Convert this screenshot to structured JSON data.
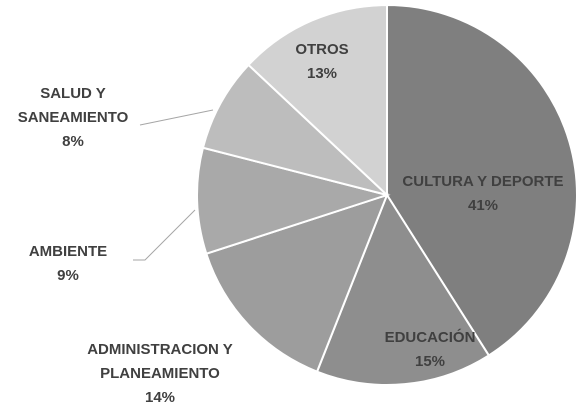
{
  "chart_data": {
    "type": "pie",
    "categories": [
      "CULTURA Y DEPORTE",
      "EDUCACIÓN",
      "ADMINISTRACION Y PLANEAMIENTO",
      "AMBIENTE",
      "SALUD Y SANEAMIENTO",
      "OTROS"
    ],
    "values": [
      41,
      15,
      14,
      9,
      8,
      13
    ],
    "value_labels": [
      "41%",
      "15%",
      "14%",
      "9%",
      "8%",
      "13%"
    ],
    "colors": [
      "#7f7f7f",
      "#8e8e8e",
      "#9d9d9d",
      "#a9a9a9",
      "#bdbdbd",
      "#d2d2d2"
    ]
  }
}
